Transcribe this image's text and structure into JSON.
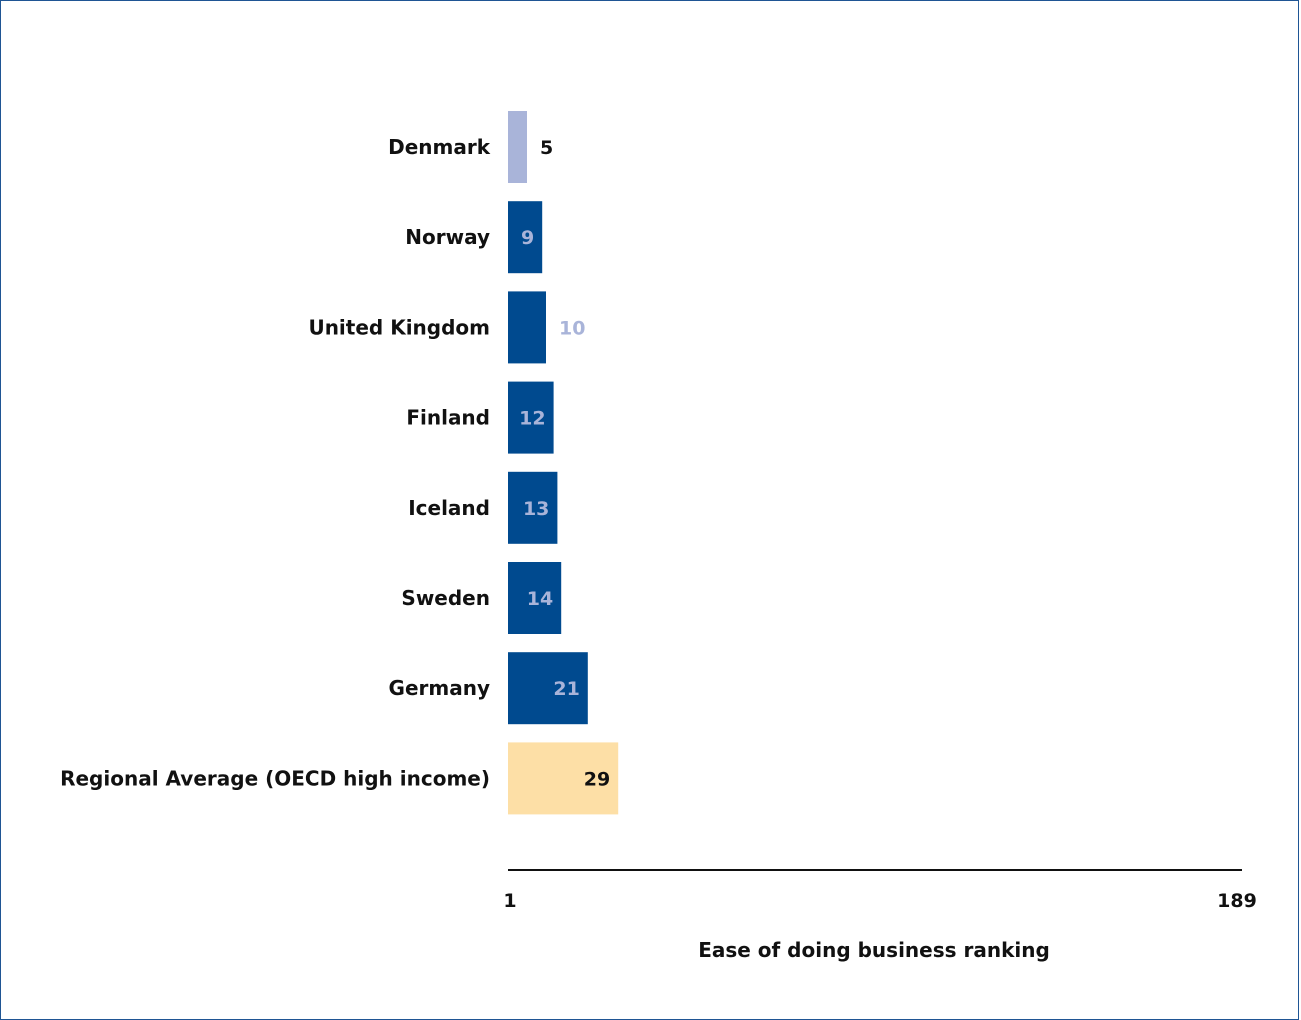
{
  "chart_data": {
    "type": "bar",
    "orientation": "horizontal",
    "categories": [
      "Denmark",
      "Norway",
      "United Kingdom",
      "Finland",
      "Iceland",
      "Sweden",
      "Germany",
      "Regional Average (OECD high income)"
    ],
    "values": [
      5,
      9,
      10,
      12,
      13,
      14,
      21,
      29
    ],
    "bar_colors": [
      "#a9b4d9",
      "#004a8f",
      "#004a8f",
      "#004a8f",
      "#004a8f",
      "#004a8f",
      "#004a8f",
      "#fddfa6"
    ],
    "label_colors": [
      "#111111",
      "#a9b4d9",
      "#a9b4d9",
      "#a9b4d9",
      "#a9b4d9",
      "#a9b4d9",
      "#a9b4d9",
      "#111111"
    ],
    "label_placement": [
      "outside",
      "inside",
      "outside",
      "inside",
      "inside",
      "inside",
      "inside",
      "inside"
    ],
    "xlabel": "Ease of doing business ranking",
    "xlim": [
      1,
      189
    ],
    "x_tick_labels": [
      "1",
      "189"
    ],
    "grid": false,
    "legend": "none"
  },
  "colors": {
    "frame_border": "#1f5594",
    "axis_line": "#111111"
  }
}
